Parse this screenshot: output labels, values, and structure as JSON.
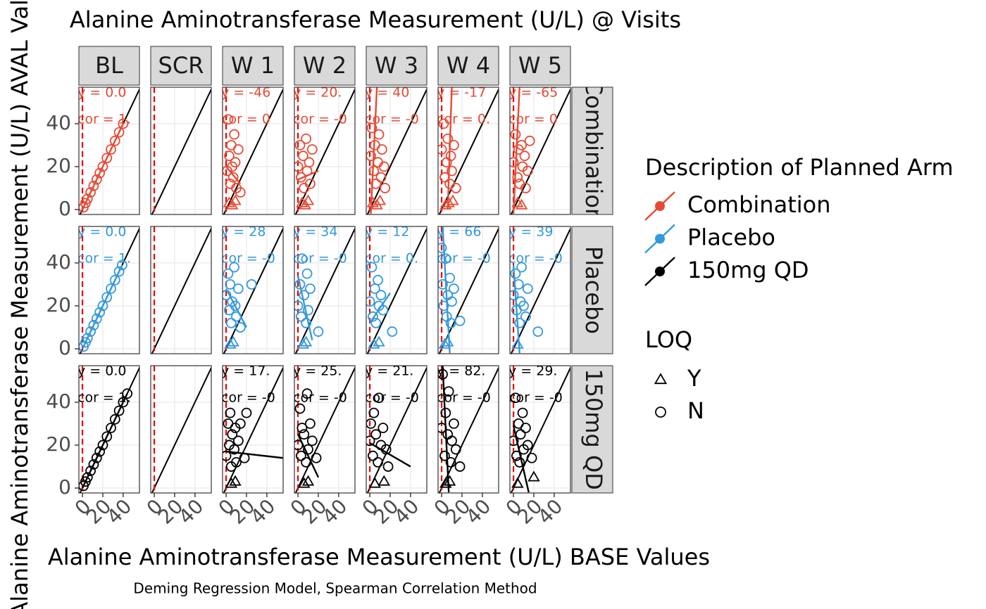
{
  "chart_data": {
    "type": "scatter",
    "title": "Alanine Aminotransferase Measurement (U/L) @ Visits",
    "x_label": "Alanine Aminotransferase Measurement (U/L) BASE Values",
    "y_label": "Alanine Aminotransferase Measurement (U/L) AVAL Values",
    "caption": "Deming Regression Model, Spearman Correlation Method",
    "columns": [
      "BL",
      "SCR",
      "W 1",
      "W 2",
      "W 3",
      "W 4",
      "W 5"
    ],
    "legend_title": "Description of Planned Arm",
    "series": [
      {
        "name": "Combination",
        "color": "#e64b35"
      },
      {
        "name": "Placebo",
        "color": "#3498db"
      },
      {
        "name": "150mg QD",
        "color": "#000000"
      }
    ],
    "shape_legend": {
      "title": "LOQ",
      "labels": [
        "Y",
        "N"
      ]
    },
    "xlim": [
      -3.5,
      56
    ],
    "ylim": [
      -2.3,
      57
    ],
    "xticks": [
      0,
      20,
      40
    ],
    "yticks": [
      0,
      20,
      40
    ],
    "ref_x": 0,
    "grid": true,
    "panels": [
      [
        {
          "annotation": [
            "y = 0.0",
            "cor = 1."
          ],
          "x": [
            1,
            3,
            5,
            8,
            11,
            14,
            17,
            20,
            24,
            28,
            32,
            36,
            40
          ],
          "y": [
            1,
            3,
            5,
            8,
            11,
            14,
            17,
            20,
            24,
            28,
            32,
            36,
            40
          ],
          "loq": [
            "N",
            "N",
            "N",
            "N",
            "N",
            "N",
            "N",
            "N",
            "N",
            "N",
            "N",
            "N",
            "N"
          ],
          "fit": {
            "x": [
              0,
              40
            ],
            "y": [
              0,
              40
            ]
          }
        },
        null,
        {
          "annotation": [
            "y = -46",
            "cor = 0"
          ],
          "x": [
            1,
            2,
            3,
            4,
            5,
            6,
            7,
            8,
            9,
            10,
            12,
            14,
            3,
            6,
            9
          ],
          "y": [
            18,
            42,
            25,
            12,
            30,
            20,
            15,
            35,
            22,
            10,
            28,
            8,
            3,
            2,
            4
          ],
          "loq": [
            "N",
            "N",
            "N",
            "N",
            "N",
            "N",
            "N",
            "N",
            "N",
            "N",
            "N",
            "N",
            "Y",
            "Y",
            "Y"
          ],
          "fit": {
            "x": [
              0,
              14
            ],
            "y": [
              20,
              12
            ]
          }
        },
        {
          "annotation": [
            "y = 20.",
            "cor = -0"
          ],
          "x": [
            0,
            2,
            3,
            5,
            6,
            8,
            9,
            11,
            12,
            14,
            4,
            7,
            10
          ],
          "y": [
            20,
            30,
            15,
            25,
            10,
            33,
            18,
            22,
            12,
            28,
            3,
            2,
            4
          ],
          "loq": [
            "N",
            "N",
            "N",
            "N",
            "N",
            "N",
            "N",
            "N",
            "N",
            "N",
            "Y",
            "Y",
            "Y"
          ],
          "fit": {
            "x": [
              0,
              20
            ],
            "y": [
              14,
              18
            ]
          }
        },
        {
          "annotation": [
            "y = 40",
            "cor = -0"
          ],
          "x": [
            1,
            2,
            4,
            5,
            6,
            8,
            9,
            11,
            12,
            14,
            15,
            3,
            7,
            10
          ],
          "y": [
            25,
            38,
            18,
            30,
            12,
            22,
            35,
            15,
            28,
            20,
            10,
            3,
            2,
            4
          ],
          "loq": [
            "N",
            "N",
            "N",
            "N",
            "N",
            "N",
            "N",
            "N",
            "N",
            "N",
            "N",
            "Y",
            "Y",
            "Y"
          ],
          "fit": {
            "x": [
              1,
              7
            ],
            "y": [
              -2,
              57
            ]
          }
        },
        {
          "annotation": [
            "y = -17",
            "cor = 0."
          ],
          "x": [
            0,
            2,
            3,
            5,
            6,
            8,
            9,
            10,
            12,
            14,
            4,
            7,
            11
          ],
          "y": [
            28,
            40,
            15,
            22,
            33,
            12,
            25,
            18,
            30,
            10,
            2,
            3,
            4
          ],
          "loq": [
            "N",
            "N",
            "N",
            "N",
            "N",
            "N",
            "N",
            "N",
            "N",
            "N",
            "Y",
            "Y",
            "Y"
          ],
          "fit": {
            "x": [
              6,
              10
            ],
            "y": [
              0,
              57
            ]
          }
        },
        {
          "annotation": [
            "y = -65",
            "cor = 0"
          ],
          "x": [
            0,
            2,
            4,
            5,
            6,
            8,
            9,
            11,
            12,
            14,
            16,
            4,
            8
          ],
          "y": [
            22,
            35,
            15,
            28,
            12,
            30,
            20,
            25,
            10,
            18,
            32,
            3,
            2
          ],
          "loq": [
            "N",
            "N",
            "N",
            "N",
            "N",
            "N",
            "N",
            "N",
            "N",
            "N",
            "N",
            "Y",
            "Y"
          ],
          "fit": {
            "x": [
              0,
              6
            ],
            "y": [
              -2,
              57
            ]
          }
        }
      ],
      [
        {
          "annotation": [
            "y = 0.0",
            "cor = 1."
          ],
          "x": [
            1,
            3,
            5,
            8,
            11,
            14,
            17,
            20,
            24,
            28,
            32,
            36,
            39
          ],
          "y": [
            1,
            3,
            5,
            8,
            11,
            14,
            17,
            20,
            24,
            28,
            32,
            36,
            39
          ],
          "loq": [
            "N",
            "N",
            "N",
            "N",
            "N",
            "N",
            "N",
            "N",
            "N",
            "N",
            "N",
            "N",
            "N"
          ],
          "fit": {
            "x": [
              0,
              39
            ],
            "y": [
              0,
              39
            ]
          }
        },
        null,
        {
          "annotation": [
            "y = 28",
            "cor = -0"
          ],
          "x": [
            0,
            2,
            3,
            4,
            5,
            6,
            8,
            9,
            10,
            12,
            14,
            25,
            4,
            7
          ],
          "y": [
            25,
            35,
            18,
            30,
            12,
            22,
            38,
            20,
            15,
            28,
            10,
            30,
            2,
            3
          ],
          "loq": [
            "N",
            "N",
            "N",
            "N",
            "N",
            "N",
            "N",
            "N",
            "N",
            "N",
            "N",
            "N",
            "Y",
            "Y"
          ],
          "fit": {
            "x": [
              0,
              20
            ],
            "y": [
              28,
              10
            ]
          }
        },
        {
          "annotation": [
            "y = 34",
            "cor = -0"
          ],
          "x": [
            0,
            2,
            3,
            4,
            6,
            8,
            9,
            10,
            12,
            20,
            5,
            8
          ],
          "y": [
            20,
            30,
            15,
            42,
            25,
            12,
            35,
            18,
            28,
            8,
            2,
            3
          ],
          "loq": [
            "N",
            "N",
            "N",
            "N",
            "N",
            "N",
            "N",
            "N",
            "N",
            "N",
            "Y",
            "Y"
          ],
          "fit": {
            "x": [
              0,
              14
            ],
            "y": [
              34,
              4
            ]
          }
        },
        {
          "annotation": [
            "y = 12",
            "cor = 0."
          ],
          "x": [
            0,
            2,
            3,
            5,
            6,
            8,
            9,
            11,
            13,
            22,
            4,
            9
          ],
          "y": [
            22,
            38,
            15,
            28,
            12,
            32,
            20,
            25,
            18,
            8,
            2,
            3
          ],
          "loq": [
            "N",
            "N",
            "N",
            "N",
            "N",
            "N",
            "N",
            "N",
            "N",
            "N",
            "Y",
            "Y"
          ],
          "fit": {
            "x": [
              0,
              20
            ],
            "y": [
              12,
              26
            ]
          }
        },
        {
          "annotation": [
            "y = 66",
            "cor = -0"
          ],
          "x": [
            0,
            1,
            2,
            4,
            5,
            6,
            8,
            9,
            10,
            12,
            18,
            3,
            6
          ],
          "y": [
            47,
            30,
            20,
            42,
            15,
            25,
            33,
            12,
            22,
            28,
            13,
            2,
            3
          ],
          "loq": [
            "N",
            "N",
            "N",
            "N",
            "N",
            "N",
            "N",
            "N",
            "N",
            "N",
            "N",
            "Y",
            "Y"
          ],
          "fit": {
            "x": [
              1,
              8
            ],
            "y": [
              57,
              -2
            ]
          }
        },
        {
          "annotation": [
            "y = 39",
            "cor = -0"
          ],
          "x": [
            0,
            2,
            3,
            5,
            6,
            7,
            8,
            10,
            12,
            14,
            24,
            4
          ],
          "y": [
            25,
            35,
            18,
            30,
            12,
            22,
            38,
            20,
            15,
            28,
            8,
            2
          ],
          "loq": [
            "N",
            "N",
            "N",
            "N",
            "N",
            "N",
            "N",
            "N",
            "N",
            "N",
            "N",
            "Y"
          ],
          "fit": {
            "x": [
              0,
              6
            ],
            "y": [
              39,
              -2
            ]
          }
        }
      ],
      [
        {
          "annotation": [
            "y = 0.0",
            "cor = 1."
          ],
          "x": [
            1,
            3,
            5,
            8,
            11,
            14,
            17,
            20,
            24,
            28,
            32,
            36,
            40,
            44
          ],
          "y": [
            1,
            3,
            5,
            8,
            11,
            14,
            17,
            20,
            24,
            28,
            32,
            36,
            40,
            44
          ],
          "loq": [
            "N",
            "N",
            "N",
            "N",
            "N",
            "N",
            "N",
            "N",
            "N",
            "N",
            "N",
            "N",
            "N",
            "N"
          ],
          "fit": {
            "x": [
              0,
              44
            ],
            "y": [
              0,
              44
            ]
          }
        },
        null,
        {
          "annotation": [
            "y = 17.",
            "cor = -0"
          ],
          "x": [
            0,
            2,
            3,
            4,
            5,
            6,
            8,
            9,
            10,
            12,
            14,
            18,
            20,
            5,
            9
          ],
          "y": [
            15,
            30,
            20,
            35,
            10,
            25,
            18,
            28,
            12,
            22,
            30,
            14,
            35,
            2,
            3
          ],
          "loq": [
            "N",
            "N",
            "N",
            "N",
            "N",
            "N",
            "N",
            "N",
            "N",
            "N",
            "N",
            "N",
            "N",
            "Y",
            "Y"
          ],
          "fit": {
            "x": [
              0,
              56
            ],
            "y": [
              17,
              14
            ]
          }
        },
        {
          "annotation": [
            "y = 25.",
            "cor = -0"
          ],
          "x": [
            0,
            2,
            3,
            4,
            6,
            8,
            9,
            10,
            12,
            14,
            18,
            6,
            10
          ],
          "y": [
            20,
            37,
            15,
            28,
            25,
            12,
            44,
            18,
            30,
            22,
            14,
            2,
            3
          ],
          "loq": [
            "N",
            "N",
            "N",
            "N",
            "N",
            "N",
            "N",
            "N",
            "N",
            "N",
            "N",
            "Y",
            "Y"
          ],
          "fit": {
            "x": [
              0,
              20
            ],
            "y": [
              25,
              5
            ]
          }
        },
        {
          "annotation": [
            "y = 21.",
            "cor = -0"
          ],
          "x": [
            0,
            1,
            3,
            4,
            6,
            8,
            9,
            11,
            13,
            16,
            18,
            5,
            14
          ],
          "y": [
            22,
            30,
            15,
            35,
            25,
            12,
            42,
            20,
            28,
            18,
            10,
            2,
            3
          ],
          "loq": [
            "N",
            "N",
            "N",
            "N",
            "N",
            "N",
            "N",
            "N",
            "N",
            "N",
            "N",
            "Y",
            "Y"
          ],
          "fit": {
            "x": [
              0,
              40
            ],
            "y": [
              21,
              10
            ]
          }
        },
        {
          "annotation": [
            "y = 82.",
            "cor = -0"
          ],
          "x": [
            0,
            1,
            3,
            4,
            6,
            7,
            9,
            10,
            12,
            14,
            18,
            4,
            8
          ],
          "y": [
            28,
            53,
            15,
            35,
            25,
            45,
            12,
            22,
            30,
            18,
            10,
            2,
            3
          ],
          "loq": [
            "N",
            "N",
            "N",
            "N",
            "N",
            "N",
            "N",
            "N",
            "N",
            "N",
            "N",
            "Y",
            "Y"
          ],
          "fit": {
            "x": [
              1,
              7
            ],
            "y": [
              57,
              -2
            ]
          }
        },
        {
          "annotation": [
            "y = 29.",
            "cor = -0"
          ],
          "x": [
            0,
            2,
            3,
            5,
            6,
            7,
            9,
            10,
            12,
            14,
            18,
            4,
            20
          ],
          "y": [
            22,
            42,
            15,
            30,
            12,
            25,
            35,
            18,
            28,
            20,
            14,
            2,
            5
          ],
          "loq": [
            "N",
            "N",
            "N",
            "N",
            "N",
            "N",
            "N",
            "N",
            "N",
            "N",
            "N",
            "Y",
            "Y"
          ],
          "fit": {
            "x": [
              0,
              15
            ],
            "y": [
              29,
              -2
            ]
          }
        }
      ]
    ]
  }
}
